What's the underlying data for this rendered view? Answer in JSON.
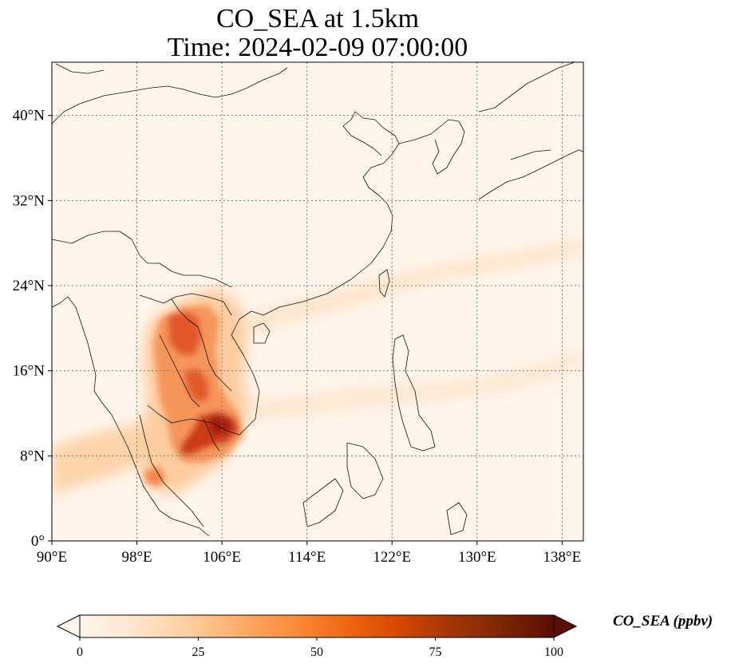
{
  "title_line1": "CO_SEA at 1.5km",
  "title_line2": "Time: 2024-02-09 07:00:00",
  "map": {
    "lon_range": [
      90,
      140
    ],
    "lat_range": [
      0,
      45
    ],
    "lon_ticks": [
      {
        "value": 90,
        "label": "90°E"
      },
      {
        "value": 98,
        "label": "98°E"
      },
      {
        "value": 106,
        "label": "106°E"
      },
      {
        "value": 114,
        "label": "114°E"
      },
      {
        "value": 122,
        "label": "122°E"
      },
      {
        "value": 130,
        "label": "130°E"
      },
      {
        "value": 138,
        "label": "138°E"
      }
    ],
    "lat_ticks": [
      {
        "value": 0,
        "label": "0°"
      },
      {
        "value": 8,
        "label": "8°N"
      },
      {
        "value": 16,
        "label": "16°N"
      },
      {
        "value": 24,
        "label": "24°N"
      },
      {
        "value": 32,
        "label": "32°N"
      },
      {
        "value": 40,
        "label": "40°N"
      }
    ],
    "gridlines": true,
    "background_color": "#fff5eb"
  },
  "colorbar": {
    "label": "CO_SEA (ppbv)",
    "min": 0,
    "max": 100,
    "ticks": [
      {
        "value": 0,
        "label": "0"
      },
      {
        "value": 25,
        "label": "25"
      },
      {
        "value": 50,
        "label": "50"
      },
      {
        "value": 75,
        "label": "75"
      },
      {
        "value": 100,
        "label": "100"
      }
    ],
    "colormap": [
      "#fff5eb",
      "#fee6ce",
      "#fdd0a2",
      "#fdae6b",
      "#fd8d3c",
      "#f16913",
      "#d94801",
      "#a63603",
      "#7f2704",
      "#5a0e00"
    ],
    "extend": "both"
  }
}
